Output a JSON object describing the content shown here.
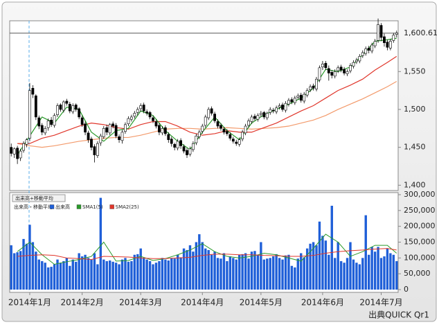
{
  "chart_data": [
    {
      "type": "candlestick",
      "xlim": [
        -0.5,
        125.5
      ],
      "ylim": [
        1393,
        1617
      ],
      "yticks": [
        {
          "value": 1400,
          "label": "1,400"
        },
        {
          "value": 1450,
          "label": "1,450"
        },
        {
          "value": 1500,
          "label": "1,500"
        },
        {
          "value": 1550,
          "label": "1,550"
        }
      ],
      "reference_line": {
        "value": 1600.61,
        "label": "1,600.61"
      },
      "up_color": "#ffffff",
      "down_color": "#000000",
      "open": [
        1450,
        1441,
        1449,
        1436,
        1446,
        1454,
        1462,
        1528,
        1518,
        1489,
        1479,
        1469,
        1476,
        1486,
        1479,
        1493,
        1506,
        1499,
        1511,
        1507,
        1497,
        1506,
        1501,
        1489,
        1481,
        1469,
        1461,
        1451,
        1439,
        1456,
        1464,
        1476,
        1469,
        1481,
        1479,
        1464,
        1459,
        1471,
        1481,
        1487,
        1491,
        1496,
        1501,
        1506,
        1497,
        1496,
        1489,
        1484,
        1479,
        1469,
        1476,
        1467,
        1461,
        1454,
        1449,
        1459,
        1451,
        1446,
        1441,
        1447,
        1456,
        1464,
        1471,
        1479,
        1489,
        1501,
        1494,
        1484,
        1479,
        1474,
        1471,
        1467,
        1461,
        1457,
        1454,
        1461,
        1469,
        1479,
        1484,
        1491,
        1487,
        1493,
        1496,
        1489,
        1496,
        1499,
        1497,
        1503,
        1506,
        1499,
        1507,
        1513,
        1509,
        1516,
        1519,
        1511,
        1519,
        1526,
        1531,
        1527,
        1539,
        1556,
        1561,
        1554,
        1549,
        1544,
        1551,
        1556,
        1553,
        1547,
        1551,
        1557,
        1563,
        1564,
        1571,
        1574,
        1581,
        1577,
        1584,
        1591,
        1611,
        1596,
        1589,
        1581,
        1591,
        1599
      ],
      "high": [
        1455,
        1450,
        1452,
        1448,
        1458,
        1462,
        1535,
        1532,
        1520,
        1492,
        1482,
        1478,
        1488,
        1490,
        1495,
        1508,
        1508,
        1512,
        1514,
        1510,
        1508,
        1508,
        1503,
        1492,
        1484,
        1472,
        1464,
        1454,
        1458,
        1468,
        1478,
        1480,
        1482,
        1484,
        1482,
        1467,
        1473,
        1483,
        1491,
        1493,
        1498,
        1503,
        1508,
        1509,
        1500,
        1498,
        1492,
        1487,
        1482,
        1478,
        1479,
        1470,
        1464,
        1456,
        1461,
        1462,
        1454,
        1449,
        1451,
        1458,
        1468,
        1473,
        1481,
        1493,
        1503,
        1504,
        1497,
        1487,
        1482,
        1477,
        1474,
        1470,
        1464,
        1460,
        1463,
        1473,
        1481,
        1488,
        1493,
        1494,
        1495,
        1498,
        1498,
        1497,
        1503,
        1502,
        1505,
        1508,
        1509,
        1511,
        1515,
        1516,
        1518,
        1521,
        1522,
        1523,
        1528,
        1533,
        1534,
        1543,
        1558,
        1564,
        1564,
        1558,
        1552,
        1553,
        1558,
        1559,
        1556,
        1553,
        1561,
        1565,
        1568,
        1573,
        1578,
        1583,
        1584,
        1588,
        1593,
        1620,
        1614,
        1600,
        1592,
        1593,
        1601,
        1604
      ],
      "low": [
        1438,
        1436,
        1428,
        1432,
        1443,
        1450,
        1458,
        1515,
        1486,
        1474,
        1466,
        1466,
        1472,
        1477,
        1476,
        1490,
        1497,
        1496,
        1505,
        1495,
        1494,
        1497,
        1487,
        1477,
        1466,
        1456,
        1446,
        1430,
        1436,
        1452,
        1461,
        1466,
        1466,
        1475,
        1462,
        1456,
        1455,
        1468,
        1478,
        1484,
        1488,
        1492,
        1497,
        1495,
        1492,
        1487,
        1482,
        1475,
        1466,
        1466,
        1465,
        1456,
        1451,
        1446,
        1446,
        1448,
        1442,
        1436,
        1438,
        1444,
        1453,
        1461,
        1468,
        1476,
        1486,
        1492,
        1482,
        1475,
        1472,
        1467,
        1465,
        1459,
        1455,
        1452,
        1451,
        1458,
        1466,
        1476,
        1481,
        1485,
        1484,
        1490,
        1487,
        1486,
        1493,
        1495,
        1494,
        1500,
        1497,
        1496,
        1504,
        1507,
        1506,
        1513,
        1509,
        1508,
        1516,
        1523,
        1525,
        1524,
        1536,
        1552,
        1552,
        1538,
        1541,
        1541,
        1548,
        1549,
        1545,
        1544,
        1548,
        1554,
        1560,
        1561,
        1568,
        1571,
        1574,
        1574,
        1581,
        1588,
        1590,
        1583,
        1578,
        1578,
        1588,
        1595
      ],
      "close": [
        1442,
        1448,
        1435,
        1445,
        1455,
        1460,
        1525,
        1520,
        1490,
        1478,
        1470,
        1475,
        1485,
        1480,
        1492,
        1505,
        1500,
        1510,
        1508,
        1498,
        1505,
        1500,
        1490,
        1480,
        1470,
        1460,
        1450,
        1440,
        1455,
        1465,
        1475,
        1470,
        1480,
        1478,
        1465,
        1460,
        1470,
        1480,
        1488,
        1490,
        1495,
        1500,
        1505,
        1498,
        1495,
        1490,
        1485,
        1478,
        1470,
        1475,
        1468,
        1460,
        1455,
        1450,
        1458,
        1452,
        1445,
        1440,
        1448,
        1455,
        1465,
        1470,
        1478,
        1490,
        1500,
        1495,
        1485,
        1478,
        1475,
        1470,
        1468,
        1462,
        1458,
        1455,
        1460,
        1470,
        1478,
        1485,
        1490,
        1488,
        1492,
        1495,
        1490,
        1495,
        1500,
        1498,
        1502,
        1505,
        1500,
        1508,
        1512,
        1510,
        1515,
        1518,
        1512,
        1520,
        1525,
        1530,
        1528,
        1540,
        1555,
        1560,
        1555,
        1548,
        1545,
        1550,
        1555,
        1552,
        1548,
        1550,
        1558,
        1562,
        1565,
        1570,
        1575,
        1580,
        1578,
        1585,
        1590,
        1612,
        1595,
        1588,
        1582,
        1590,
        1598,
        1601
      ],
      "lines": [
        {
          "color": "#f39a6b",
          "x": [
            2,
            6,
            10,
            14,
            18,
            22,
            26,
            30,
            34,
            38,
            42,
            46,
            50,
            54,
            58,
            62,
            66,
            70,
            74,
            78,
            82,
            86,
            90,
            94,
            98,
            102,
            106,
            110,
            114,
            118,
            122,
            125
          ],
          "values": [
            1455,
            1452,
            1450,
            1452,
            1455,
            1458,
            1460,
            1462,
            1463,
            1463,
            1466,
            1470,
            1474,
            1475,
            1475,
            1474,
            1475,
            1476,
            1475,
            1474,
            1475,
            1476,
            1478,
            1482,
            1486,
            1492,
            1500,
            1507,
            1514,
            1522,
            1530,
            1537
          ]
        },
        {
          "color": "#e0352a",
          "x": [
            2,
            6,
            10,
            14,
            18,
            22,
            26,
            30,
            34,
            38,
            42,
            46,
            50,
            54,
            58,
            62,
            66,
            70,
            74,
            78,
            82,
            86,
            90,
            94,
            98,
            102,
            106,
            110,
            114,
            118,
            122,
            125
          ],
          "values": [
            1455,
            1455,
            1462,
            1466,
            1472,
            1478,
            1482,
            1480,
            1476,
            1474,
            1480,
            1484,
            1484,
            1478,
            1470,
            1466,
            1468,
            1472,
            1470,
            1470,
            1476,
            1482,
            1490,
            1498,
            1505,
            1515,
            1525,
            1532,
            1540,
            1552,
            1562,
            1570
          ]
        },
        {
          "color": "#2a9a2a",
          "x": [
            2,
            6,
            10,
            14,
            18,
            22,
            26,
            30,
            34,
            38,
            42,
            46,
            50,
            54,
            58,
            62,
            66,
            70,
            74,
            78,
            82,
            86,
            90,
            94,
            98,
            102,
            106,
            110,
            114,
            118,
            122,
            125
          ],
          "values": [
            1440,
            1465,
            1490,
            1482,
            1503,
            1500,
            1470,
            1458,
            1472,
            1475,
            1498,
            1492,
            1472,
            1458,
            1447,
            1470,
            1490,
            1472,
            1460,
            1482,
            1493,
            1500,
            1507,
            1515,
            1528,
            1553,
            1550,
            1556,
            1572,
            1590,
            1592,
            1594
          ]
        }
      ]
    },
    {
      "type": "bar",
      "control_label": "出来高+移動平均",
      "legend_title": "出来高・移動平均",
      "xlim": [
        -0.5,
        125.5
      ],
      "ylim": [
        0,
        300000
      ],
      "xticks": [
        {
          "value": 6,
          "label": "2014年1月"
        },
        {
          "value": 23,
          "label": "2014年2月"
        },
        {
          "value": 42,
          "label": "2014年3月"
        },
        {
          "value": 62,
          "label": "2014年4月"
        },
        {
          "value": 81,
          "label": "2014年5月"
        },
        {
          "value": 101,
          "label": "2014年6月"
        },
        {
          "value": 120,
          "label": "2014年7月"
        }
      ],
      "yticks": [
        0,
        {
          "value": 50000,
          "label": "50,000"
        },
        {
          "value": 100000,
          "label": "100,000"
        },
        {
          "value": 150000,
          "label": "150,000"
        },
        {
          "value": 200000,
          "label": "200,000"
        },
        {
          "value": 250000,
          "label": "250,000"
        },
        {
          "value": 300000,
          "label": "300,000"
        }
      ],
      "series": [
        {
          "name": "出来高",
          "type": "bar",
          "color": "#1f5fd8",
          "values": [
            140000,
            115000,
            118000,
            122000,
            160000,
            145000,
            205000,
            150000,
            120000,
            95000,
            90000,
            85000,
            70000,
            72000,
            80000,
            95000,
            85000,
            90000,
            100000,
            75000,
            95000,
            88000,
            115000,
            105000,
            110000,
            100000,
            95000,
            115000,
            80000,
            290000,
            95000,
            90000,
            92000,
            88000,
            85000,
            80000,
            95000,
            100000,
            88000,
            90000,
            110000,
            112000,
            130000,
            100000,
            95000,
            90000,
            80000,
            85000,
            90000,
            100000,
            95000,
            92000,
            100000,
            98000,
            110000,
            102000,
            130000,
            125000,
            140000,
            120000,
            150000,
            175000,
            150000,
            130000,
            125000,
            110000,
            120000,
            100000,
            98000,
            115000,
            90000,
            105000,
            100000,
            95000,
            110000,
            112000,
            115000,
            98000,
            120000,
            122000,
            110000,
            150000,
            95000,
            98000,
            100000,
            105000,
            112000,
            100000,
            95000,
            108000,
            110000,
            75000,
            70000,
            98000,
            115000,
            102000,
            130000,
            145000,
            150000,
            140000,
            215000,
            170000,
            155000,
            110000,
            265000,
            100000,
            150000,
            90000,
            85000,
            100000,
            150000,
            95000,
            85000,
            80000,
            100000,
            235000,
            110000,
            135000,
            120000,
            135000,
            100000,
            105000,
            130000,
            115000,
            110000,
            90000
          ]
        },
        {
          "name": "SMA1(5)",
          "type": "line",
          "color": "#2a9a2a",
          "x": [
            2,
            6,
            10,
            14,
            18,
            22,
            26,
            30,
            34,
            38,
            42,
            46,
            50,
            54,
            58,
            62,
            66,
            70,
            74,
            78,
            82,
            86,
            90,
            94,
            98,
            102,
            106,
            110,
            114,
            118,
            122,
            125
          ],
          "values": [
            120000,
            150000,
            110000,
            80000,
            88000,
            95000,
            105000,
            150000,
            90000,
            92000,
            105000,
            92000,
            98000,
            110000,
            125000,
            145000,
            120000,
            105000,
            100000,
            105000,
            115000,
            110000,
            100000,
            90000,
            130000,
            175000,
            150000,
            105000,
            120000,
            140000,
            140000,
            115000
          ]
        },
        {
          "name": "SMA2(25)",
          "type": "line",
          "color": "#e0352a",
          "x": [
            2,
            6,
            10,
            14,
            18,
            22,
            26,
            30,
            34,
            38,
            42,
            46,
            50,
            54,
            58,
            62,
            66,
            70,
            74,
            78,
            82,
            86,
            90,
            94,
            98,
            102,
            106,
            110,
            114,
            118,
            122,
            125
          ],
          "values": [
            105000,
            108000,
            110000,
            108000,
            100000,
            98000,
            95000,
            105000,
            104000,
            103000,
            100000,
            98000,
            98000,
            100000,
            102000,
            108000,
            112000,
            112000,
            110000,
            110000,
            108000,
            107000,
            105000,
            105000,
            108000,
            115000,
            120000,
            123000,
            125000,
            128000,
            130000,
            125000
          ]
        }
      ]
    }
  ],
  "footer": "出典QUICK Qr1"
}
